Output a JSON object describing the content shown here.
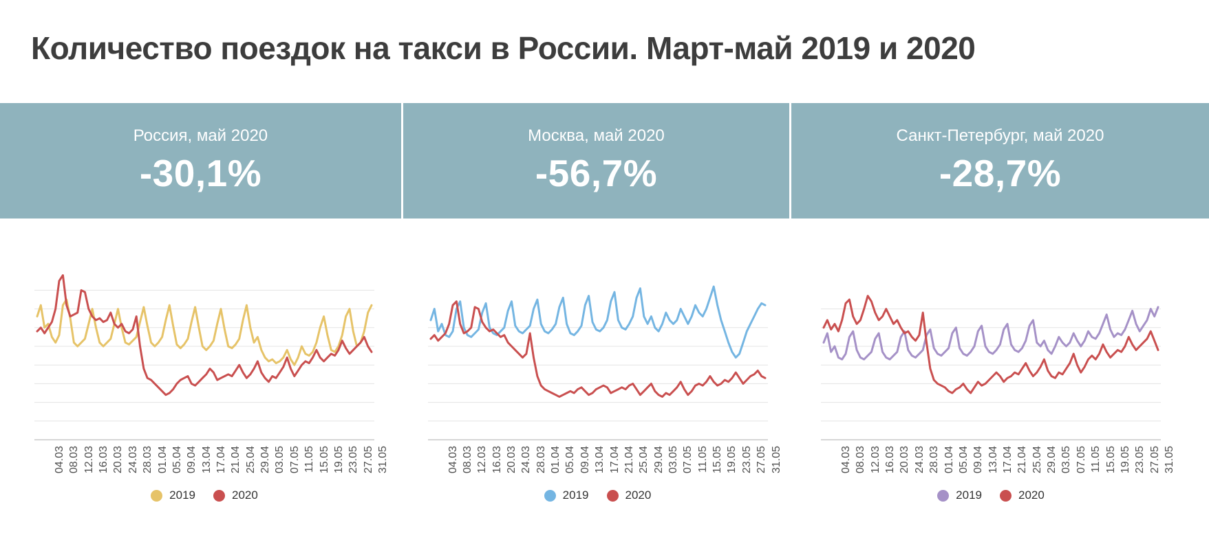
{
  "title": "Количество поездок на такси в России. Март-май 2019 и 2020",
  "summary_cards": [
    {
      "label": "Россия, май 2020",
      "value": "-30,1%"
    },
    {
      "label": "Москва, май 2020",
      "value": "-56,7%"
    },
    {
      "label": "Санкт-Петербург, май 2020",
      "value": "-28,7%"
    }
  ],
  "colors": {
    "banner_bg": "#8fb3bd",
    "card_text": "#ffffff",
    "title_text": "#3d3d3d",
    "grid": "#e3e3e3",
    "axis": "#c9c9c9",
    "tick_text": "#4f4f4f",
    "legend_text": "#333333",
    "red_2020": "#c94f4f",
    "yellow_2019": "#e6c368",
    "blue_2019": "#74b5e2",
    "purple_2019": "#a591c7"
  },
  "chart_data": [
    {
      "type": "line",
      "title": "Россия",
      "x_start": "01.03",
      "x_tick_labels": [
        "04.03",
        "08.03",
        "12.03",
        "16.03",
        "20.03",
        "24.03",
        "28.03",
        "01.04",
        "05.04",
        "09.04",
        "13.04",
        "17.04",
        "21.04",
        "25.04",
        "29.04",
        "03.05",
        "07.05",
        "11.05",
        "15.05",
        "19.05",
        "23.05",
        "27.05",
        "31.05"
      ],
      "ylim": [
        0,
        100
      ],
      "grid_max": 80,
      "grid_step": 10,
      "legend_position": "bottom-center",
      "series": [
        {
          "name": "2019",
          "color": "#e6c368",
          "values": [
            66,
            72,
            60,
            62,
            55,
            52,
            56,
            72,
            75,
            65,
            52,
            50,
            52,
            54,
            62,
            70,
            60,
            52,
            50,
            52,
            54,
            62,
            70,
            60,
            52,
            51,
            53,
            55,
            63,
            71,
            61,
            52,
            50,
            52,
            55,
            64,
            72,
            61,
            51,
            49,
            51,
            54,
            63,
            71,
            60,
            50,
            48,
            50,
            53,
            62,
            70,
            59,
            50,
            49,
            51,
            54,
            64,
            72,
            60,
            52,
            55,
            48,
            44,
            42,
            43,
            41,
            42,
            44,
            48,
            43,
            40,
            44,
            50,
            46,
            45,
            47,
            52,
            60,
            66,
            56,
            48,
            47,
            50,
            56,
            66,
            70,
            58,
            50,
            52,
            58,
            68,
            72
          ]
        },
        {
          "name": "2020",
          "color": "#c94f4f",
          "values": [
            58,
            60,
            57,
            60,
            63,
            70,
            85,
            88,
            72,
            66,
            67,
            68,
            80,
            79,
            70,
            66,
            64,
            65,
            63,
            64,
            68,
            62,
            60,
            62,
            58,
            57,
            59,
            66,
            50,
            38,
            33,
            32,
            30,
            28,
            26,
            24,
            25,
            27,
            30,
            32,
            33,
            34,
            30,
            29,
            31,
            33,
            35,
            38,
            36,
            32,
            33,
            34,
            35,
            34,
            37,
            40,
            36,
            33,
            35,
            38,
            42,
            36,
            33,
            31,
            34,
            33,
            36,
            39,
            44,
            38,
            34,
            37,
            40,
            42,
            41,
            44,
            48,
            44,
            42,
            44,
            46,
            45,
            48,
            53,
            49,
            46,
            48,
            50,
            52,
            55,
            50,
            47
          ]
        }
      ]
    },
    {
      "type": "line",
      "title": "Москва",
      "x_start": "01.03",
      "x_tick_labels": [
        "04.03",
        "08.03",
        "12.03",
        "16.03",
        "20.03",
        "24.03",
        "28.03",
        "01.04",
        "05.04",
        "09.04",
        "13.04",
        "17.04",
        "21.04",
        "25.04",
        "29.04",
        "03.05",
        "07.05",
        "11.05",
        "15.05",
        "19.05",
        "23.05",
        "27.05",
        "31.05"
      ],
      "ylim": [
        0,
        100
      ],
      "grid_max": 60,
      "grid_step": 10,
      "legend_position": "bottom-center",
      "series": [
        {
          "name": "2019",
          "color": "#74b5e2",
          "values": [
            64,
            70,
            58,
            62,
            56,
            55,
            58,
            70,
            74,
            60,
            56,
            55,
            57,
            59,
            68,
            73,
            60,
            57,
            56,
            58,
            60,
            69,
            74,
            61,
            58,
            57,
            59,
            61,
            70,
            75,
            62,
            58,
            57,
            59,
            62,
            71,
            76,
            62,
            57,
            56,
            58,
            61,
            72,
            77,
            63,
            59,
            58,
            60,
            64,
            74,
            79,
            64,
            60,
            59,
            62,
            66,
            76,
            81,
            66,
            62,
            66,
            60,
            58,
            62,
            68,
            64,
            62,
            64,
            70,
            66,
            62,
            66,
            72,
            68,
            66,
            70,
            76,
            82,
            72,
            64,
            58,
            52,
            47,
            44,
            46,
            52,
            58,
            62,
            66,
            70,
            73,
            72
          ]
        },
        {
          "name": "2020",
          "color": "#c94f4f",
          "values": [
            54,
            56,
            53,
            55,
            57,
            62,
            72,
            74,
            62,
            57,
            58,
            60,
            71,
            70,
            63,
            60,
            58,
            59,
            57,
            55,
            56,
            52,
            50,
            48,
            46,
            44,
            46,
            57,
            44,
            34,
            29,
            27,
            26,
            25,
            24,
            23,
            24,
            25,
            26,
            25,
            27,
            28,
            26,
            24,
            25,
            27,
            28,
            29,
            28,
            25,
            26,
            27,
            28,
            27,
            29,
            30,
            27,
            24,
            26,
            28,
            30,
            26,
            24,
            23,
            25,
            24,
            26,
            28,
            31,
            27,
            24,
            26,
            29,
            30,
            29,
            31,
            34,
            31,
            29,
            30,
            32,
            31,
            33,
            36,
            33,
            30,
            32,
            34,
            35,
            37,
            34,
            33
          ]
        }
      ]
    },
    {
      "type": "line",
      "title": "Санкт-Петербург",
      "x_start": "01.03",
      "x_tick_labels": [
        "04.03",
        "08.03",
        "12.03",
        "16.03",
        "20.03",
        "24.03",
        "28.03",
        "01.04",
        "05.04",
        "09.04",
        "13.04",
        "17.04",
        "21.04",
        "25.04",
        "29.04",
        "03.05",
        "07.05",
        "11.05",
        "15.05",
        "19.05",
        "23.05",
        "27.05",
        "31.05"
      ],
      "ylim": [
        0,
        100
      ],
      "grid_max": 70,
      "grid_step": 10,
      "legend_position": "bottom-center",
      "series": [
        {
          "name": "2019",
          "color": "#a591c7",
          "values": [
            52,
            57,
            47,
            50,
            44,
            43,
            46,
            55,
            58,
            48,
            44,
            43,
            45,
            47,
            54,
            57,
            47,
            44,
            43,
            45,
            47,
            55,
            58,
            48,
            45,
            44,
            46,
            48,
            56,
            59,
            49,
            46,
            45,
            47,
            49,
            57,
            60,
            49,
            46,
            45,
            47,
            50,
            58,
            61,
            50,
            47,
            46,
            48,
            51,
            59,
            62,
            51,
            48,
            47,
            49,
            53,
            61,
            64,
            52,
            50,
            53,
            48,
            46,
            50,
            55,
            52,
            50,
            52,
            57,
            53,
            50,
            53,
            58,
            55,
            54,
            57,
            62,
            67,
            59,
            55,
            57,
            56,
            59,
            64,
            69,
            62,
            58,
            61,
            64,
            70,
            66,
            71
          ]
        },
        {
          "name": "2020",
          "color": "#c94f4f",
          "values": [
            60,
            64,
            59,
            62,
            58,
            64,
            73,
            75,
            66,
            62,
            64,
            70,
            77,
            74,
            68,
            64,
            66,
            70,
            66,
            62,
            64,
            60,
            57,
            58,
            55,
            53,
            56,
            68,
            52,
            38,
            32,
            30,
            29,
            28,
            26,
            25,
            27,
            28,
            30,
            27,
            25,
            28,
            31,
            29,
            30,
            32,
            34,
            36,
            34,
            31,
            33,
            34,
            36,
            35,
            38,
            41,
            37,
            34,
            36,
            39,
            43,
            37,
            34,
            33,
            36,
            35,
            38,
            41,
            46,
            40,
            36,
            39,
            43,
            45,
            43,
            46,
            51,
            47,
            44,
            46,
            48,
            47,
            50,
            55,
            51,
            48,
            50,
            52,
            54,
            58,
            53,
            48
          ]
        }
      ]
    }
  ]
}
